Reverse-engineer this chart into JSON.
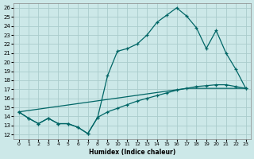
{
  "xlabel": "Humidex (Indice chaleur)",
  "background_color": "#cce8e8",
  "grid_color": "#aacccc",
  "line_color": "#006666",
  "xlim": [
    -0.5,
    23.5
  ],
  "ylim": [
    11.5,
    26.5
  ],
  "xticks": [
    0,
    1,
    2,
    3,
    4,
    5,
    6,
    7,
    8,
    9,
    10,
    11,
    12,
    13,
    14,
    15,
    16,
    17,
    18,
    19,
    20,
    21,
    22,
    23
  ],
  "yticks": [
    12,
    13,
    14,
    15,
    16,
    17,
    18,
    19,
    20,
    21,
    22,
    23,
    24,
    25,
    26
  ],
  "curve1_x": [
    0,
    1,
    2,
    3,
    4,
    5,
    6,
    7,
    8,
    9,
    10,
    11,
    12,
    13,
    14,
    15,
    16,
    17,
    18,
    19,
    20,
    21,
    22,
    23
  ],
  "curve1_y": [
    14.5,
    13.8,
    13.2,
    13.8,
    13.2,
    13.2,
    12.8,
    12.1,
    13.9,
    18.5,
    21.2,
    21.5,
    22.0,
    23.0,
    24.4,
    25.2,
    26.0,
    25.1,
    23.8,
    21.5,
    23.5,
    21.0,
    19.2,
    17.1
  ],
  "curve2_x": [
    0,
    1,
    2,
    3,
    4,
    5,
    6,
    7,
    8,
    9,
    10,
    11,
    12,
    13,
    14,
    15,
    16,
    17,
    18,
    19,
    20,
    21,
    22,
    23
  ],
  "curve2_y": [
    14.5,
    13.8,
    13.2,
    13.8,
    13.2,
    13.2,
    12.8,
    12.1,
    13.9,
    14.5,
    14.9,
    15.3,
    15.7,
    16.0,
    16.3,
    16.6,
    16.9,
    17.1,
    17.3,
    17.4,
    17.5,
    17.5,
    17.3,
    17.1
  ],
  "line3_x": [
    0,
    17,
    23
  ],
  "line3_y": [
    14.5,
    17.1,
    17.1
  ]
}
